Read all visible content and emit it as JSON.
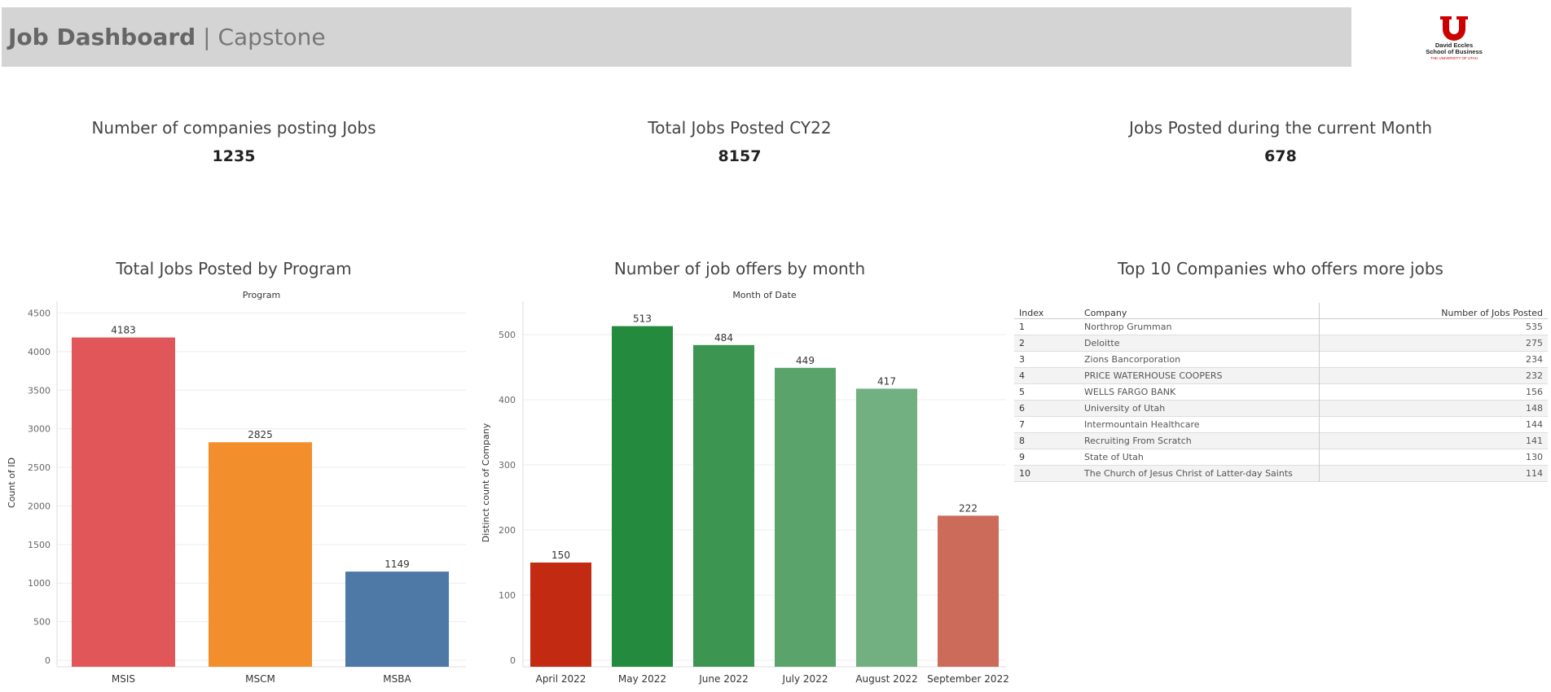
{
  "header": {
    "title_bold": "Job Dashboard",
    "separator": "|",
    "title_light": "Capstone"
  },
  "logo": {
    "line1": "David Eccles",
    "line2": "School of Business",
    "line3": "THE UNIVERSITY OF UTAH",
    "color": "#cc0000"
  },
  "kpis": [
    {
      "title": "Number of companies posting Jobs",
      "value": "1235"
    },
    {
      "title": "Total Jobs Posted CY22",
      "value": "8157"
    },
    {
      "title": "Jobs Posted during the current Month",
      "value": "678"
    }
  ],
  "chart_data": [
    {
      "type": "bar",
      "title": "Total Jobs Posted by Program",
      "xlabel": "Program",
      "ylabel": "Count of ID",
      "categories": [
        "MSIS",
        "MSCM",
        "MSBA"
      ],
      "values": [
        4183,
        2825,
        1149
      ],
      "colors": [
        "#e15759",
        "#f28e2b",
        "#4e79a7"
      ],
      "ylim": [
        0,
        4600
      ],
      "yticks": [
        0,
        500,
        1000,
        1500,
        2000,
        2500,
        3000,
        3500,
        4000,
        4500
      ],
      "grid": true
    },
    {
      "type": "bar",
      "title": "Number of job offers by month",
      "xlabel": "Month of Date",
      "ylabel": "Distinct count of Company",
      "categories": [
        "April 2022",
        "May 2022",
        "June 2022",
        "July 2022",
        "August 2022",
        "September 2022"
      ],
      "values": [
        150,
        513,
        484,
        449,
        417,
        222
      ],
      "colors": [
        "#c22a12",
        "#248a3d",
        "#3c9652",
        "#5aa46b",
        "#72b081",
        "#cd6b5b"
      ],
      "ylim": [
        0,
        545
      ],
      "yticks": [
        0,
        100,
        200,
        300,
        400,
        500
      ],
      "grid": true
    },
    {
      "type": "table",
      "title": "Top 10 Companies who offers more jobs",
      "columns": [
        "Index",
        "Company",
        "Number of Jobs Posted"
      ],
      "rows": [
        [
          "1",
          "Northrop Grumman",
          "535"
        ],
        [
          "2",
          "Deloitte",
          "275"
        ],
        [
          "3",
          "Zions Bancorporation",
          "234"
        ],
        [
          "4",
          "PRICE WATERHOUSE COOPERS",
          "232"
        ],
        [
          "5",
          "WELLS FARGO BANK",
          "156"
        ],
        [
          "6",
          "University of Utah",
          "148"
        ],
        [
          "7",
          "Intermountain Healthcare",
          "144"
        ],
        [
          "8",
          "Recruiting From Scratch",
          "141"
        ],
        [
          "9",
          "State of Utah",
          "130"
        ],
        [
          "10",
          "The Church of Jesus Christ of Latter-day Saints",
          "114"
        ]
      ]
    }
  ]
}
